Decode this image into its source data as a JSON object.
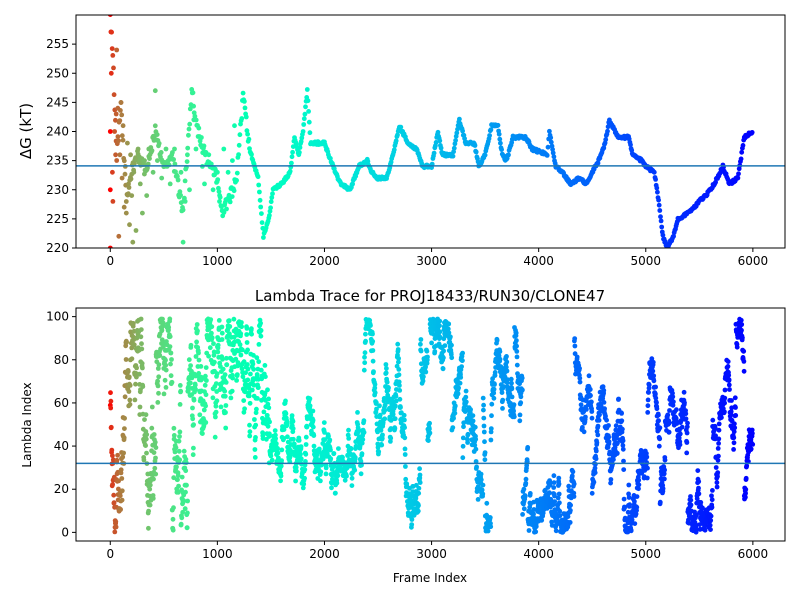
{
  "chart_data": [
    {
      "type": "scatter",
      "title": "",
      "xlabel": "",
      "ylabel": "ΔG (kT)",
      "xlim": [
        -320,
        6300
      ],
      "ylim": [
        220,
        260
      ],
      "xticks": [
        0,
        1000,
        2000,
        3000,
        4000,
        5000,
        6000
      ],
      "yticks": [
        220,
        225,
        230,
        235,
        240,
        245,
        250,
        255
      ],
      "hline": 234.1,
      "hline_color": "#1f77b4",
      "colormap": "rainbow (red at start, violet at end)",
      "grid": false,
      "legend": "none",
      "trace": [
        [
          0,
          260
        ],
        [
          30,
          250
        ],
        [
          60,
          236
        ],
        [
          100,
          244
        ],
        [
          150,
          228
        ],
        [
          200,
          233
        ],
        [
          260,
          236
        ],
        [
          330,
          233
        ],
        [
          420,
          240
        ],
        [
          500,
          234
        ],
        [
          580,
          236
        ],
        [
          680,
          226
        ],
        [
          760,
          247
        ],
        [
          820,
          240
        ],
        [
          900,
          235
        ],
        [
          980,
          233
        ],
        [
          1050,
          226
        ],
        [
          1120,
          229
        ],
        [
          1180,
          232
        ],
        [
          1240,
          246
        ],
        [
          1300,
          237
        ],
        [
          1380,
          232
        ],
        [
          1430,
          222
        ],
        [
          1480,
          225
        ],
        [
          1520,
          230
        ],
        [
          1600,
          231
        ],
        [
          1680,
          233
        ],
        [
          1720,
          239
        ],
        [
          1760,
          236
        ],
        [
          1800,
          240
        ],
        [
          1840,
          247
        ],
        [
          1870,
          238
        ],
        [
          2000,
          238
        ],
        [
          2080,
          234
        ],
        [
          2150,
          231
        ],
        [
          2240,
          230
        ],
        [
          2280,
          232
        ],
        [
          2320,
          234
        ],
        [
          2400,
          235
        ],
        [
          2440,
          233
        ],
        [
          2500,
          232
        ],
        [
          2580,
          232
        ],
        [
          2640,
          236
        ],
        [
          2700,
          241
        ],
        [
          2780,
          238
        ],
        [
          2860,
          237
        ],
        [
          2920,
          234
        ],
        [
          3000,
          234
        ],
        [
          3060,
          240
        ],
        [
          3100,
          236
        ],
        [
          3200,
          236
        ],
        [
          3260,
          242
        ],
        [
          3320,
          238
        ],
        [
          3400,
          238
        ],
        [
          3440,
          234
        ],
        [
          3500,
          236
        ],
        [
          3560,
          241
        ],
        [
          3620,
          241
        ],
        [
          3660,
          236
        ],
        [
          3700,
          235
        ],
        [
          3760,
          239
        ],
        [
          3880,
          239
        ],
        [
          3940,
          237
        ],
        [
          4080,
          236
        ],
        [
          4100,
          240
        ],
        [
          4160,
          234
        ],
        [
          4220,
          233
        ],
        [
          4300,
          231
        ],
        [
          4380,
          232
        ],
        [
          4440,
          231
        ],
        [
          4500,
          233
        ],
        [
          4560,
          235
        ],
        [
          4620,
          238
        ],
        [
          4660,
          242
        ],
        [
          4740,
          239
        ],
        [
          4840,
          239
        ],
        [
          4880,
          236
        ],
        [
          4960,
          235
        ],
        [
          5000,
          234
        ],
        [
          5080,
          233
        ],
        [
          5120,
          228
        ],
        [
          5160,
          222
        ],
        [
          5200,
          220
        ],
        [
          5260,
          222
        ],
        [
          5300,
          225
        ],
        [
          5400,
          226
        ],
        [
          5500,
          228
        ],
        [
          5560,
          229
        ],
        [
          5640,
          231
        ],
        [
          5720,
          234
        ],
        [
          5780,
          231
        ],
        [
          5860,
          232
        ],
        [
          5920,
          239
        ],
        [
          6000,
          240
        ]
      ],
      "early_scatter": [
        [
          0,
          220
        ],
        [
          0,
          230
        ],
        [
          0,
          240
        ],
        [
          10,
          250
        ],
        [
          20,
          233
        ],
        [
          25,
          228
        ],
        [
          40,
          240
        ],
        [
          50,
          236
        ],
        [
          55,
          243
        ],
        [
          60,
          254
        ],
        [
          70,
          244
        ],
        [
          80,
          222
        ],
        [
          90,
          236
        ],
        [
          100,
          245
        ],
        [
          110,
          232
        ],
        [
          120,
          241
        ],
        [
          130,
          227
        ],
        [
          140,
          234
        ],
        [
          150,
          226
        ],
        [
          160,
          238
        ],
        [
          170,
          231
        ],
        [
          180,
          224
        ],
        [
          190,
          236
        ],
        [
          200,
          229
        ],
        [
          210,
          221
        ],
        [
          220,
          233
        ],
        [
          240,
          223
        ],
        [
          260,
          237
        ],
        [
          280,
          231
        ],
        [
          300,
          226
        ],
        [
          320,
          235
        ],
        [
          340,
          229
        ],
        [
          360,
          237
        ],
        [
          400,
          233
        ],
        [
          420,
          247
        ],
        [
          440,
          235
        ],
        [
          480,
          232
        ],
        [
          520,
          237
        ],
        [
          560,
          231
        ],
        [
          600,
          237
        ],
        [
          640,
          229
        ],
        [
          660,
          233
        ],
        [
          680,
          221
        ],
        [
          700,
          228
        ],
        [
          720,
          236
        ],
        [
          740,
          230
        ],
        [
          780,
          242
        ],
        [
          800,
          237
        ],
        [
          860,
          234
        ],
        [
          880,
          231
        ],
        [
          920,
          236
        ],
        [
          960,
          230
        ],
        [
          1000,
          233
        ],
        [
          1020,
          228
        ],
        [
          1060,
          237
        ],
        [
          1100,
          233
        ],
        [
          1140,
          235
        ],
        [
          1160,
          241
        ]
      ]
    },
    {
      "type": "scatter",
      "title": "Lambda Trace for PROJ18433/RUN30/CLONE47",
      "xlabel": "Frame Index",
      "ylabel": "Lambda Index",
      "xlim": [
        -320,
        6300
      ],
      "ylim": [
        -4,
        104
      ],
      "xticks": [
        0,
        1000,
        2000,
        3000,
        4000,
        5000,
        6000
      ],
      "yticks": [
        0,
        20,
        40,
        60,
        80,
        100
      ],
      "hline": 32,
      "hline_color": "#1f77b4",
      "colormap": "rainbow (red at start, violet at end)",
      "grid": false,
      "legend": "none",
      "approx_point_count": 6000,
      "lambda_range": [
        0,
        99
      ]
    }
  ],
  "colors": {
    "reference_line": "#1f77b4",
    "axes": "#000000",
    "background": "#ffffff"
  }
}
